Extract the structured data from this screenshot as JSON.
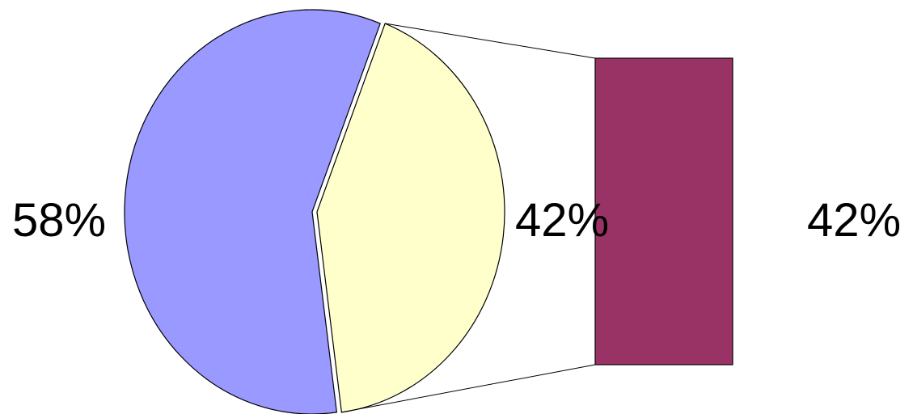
{
  "chart_data": {
    "type": "pie",
    "subtype": "pie-of-bar",
    "slices": [
      {
        "label": "58%",
        "value": 58,
        "color": "#9999ff"
      },
      {
        "label": "42%",
        "value": 42,
        "color": "#ffffcc",
        "exploded": true
      }
    ],
    "breakout_bar": {
      "segments": [
        {
          "label": "42%",
          "value": 42,
          "color": "#993366"
        }
      ]
    },
    "legend": "none",
    "grid": false
  }
}
